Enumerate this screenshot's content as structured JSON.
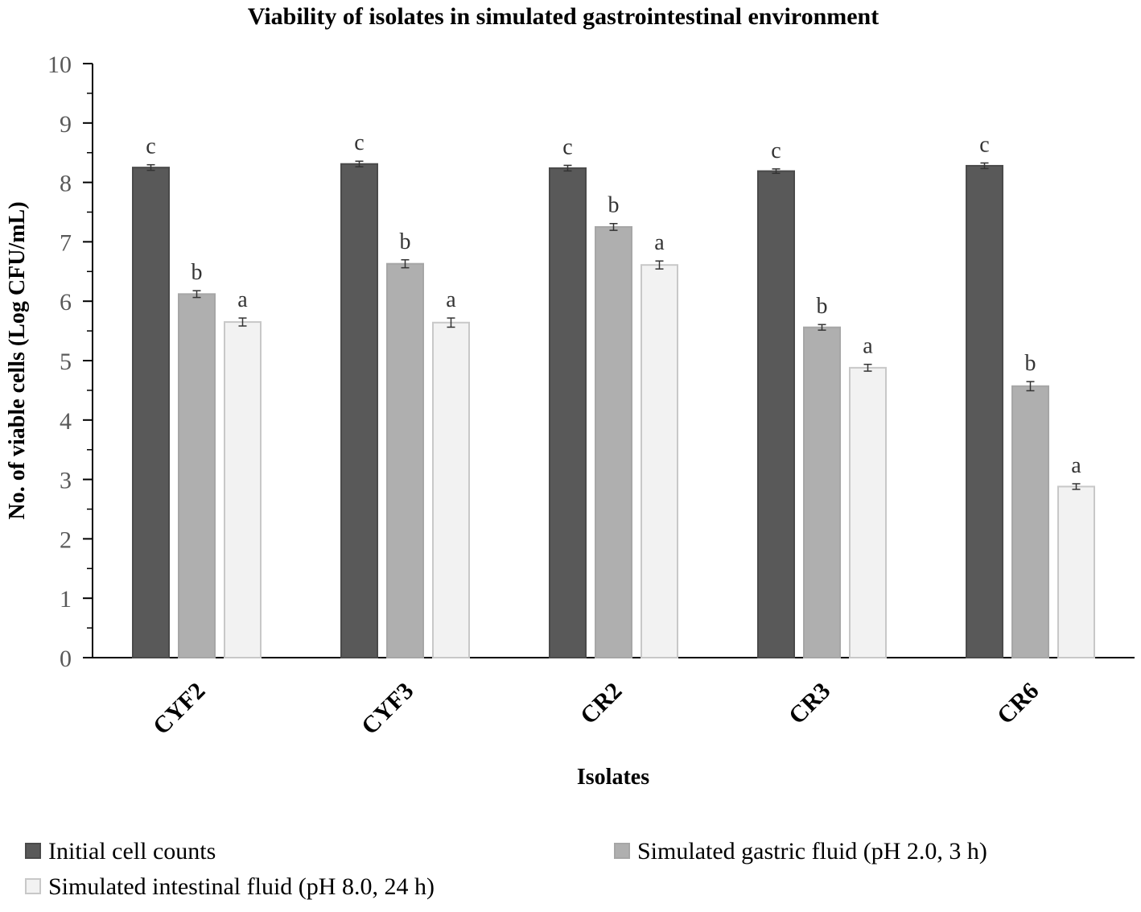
{
  "chart_data": {
    "type": "bar",
    "title": "Viability of isolates in simulated gastrointestinal environment",
    "xlabel": "Isolates",
    "ylabel": "No. of viable cells (Log CFU/mL)",
    "ylim": [
      0,
      10
    ],
    "yticks": [
      "0",
      "1",
      "2",
      "3",
      "4",
      "5",
      "6",
      "7",
      "8",
      "9",
      "10"
    ],
    "categories": [
      "CYF2",
      "CYF3",
      "CR2",
      "CR3",
      "CR6"
    ],
    "series": [
      {
        "name": "Initial cell counts",
        "color": "#595959",
        "values": [
          8.25,
          8.31,
          8.24,
          8.19,
          8.28
        ],
        "errors": [
          0.02,
          0.02,
          0.02,
          0.01,
          0.02
        ],
        "labels": [
          "c",
          "c",
          "c",
          "c",
          "c"
        ]
      },
      {
        "name": "Simulated gastric fluid (pH 2.0, 3 h)",
        "color": "#afafaf",
        "values": [
          6.12,
          6.63,
          7.25,
          5.56,
          4.57
        ],
        "errors": [
          0.03,
          0.04,
          0.03,
          0.02,
          0.05
        ],
        "labels": [
          "b",
          "b",
          "b",
          "b",
          "b"
        ]
      },
      {
        "name": "Simulated intestinal fluid (pH 8.0, 24 h)",
        "color": "#f2f2f2",
        "values": [
          5.65,
          5.64,
          6.61,
          4.88,
          2.88
        ],
        "errors": [
          0.04,
          0.05,
          0.04,
          0.03,
          0.02
        ],
        "labels": [
          "a",
          "a",
          "a",
          "a",
          "a"
        ]
      }
    ],
    "legend_position": "bottom",
    "grid": false
  }
}
